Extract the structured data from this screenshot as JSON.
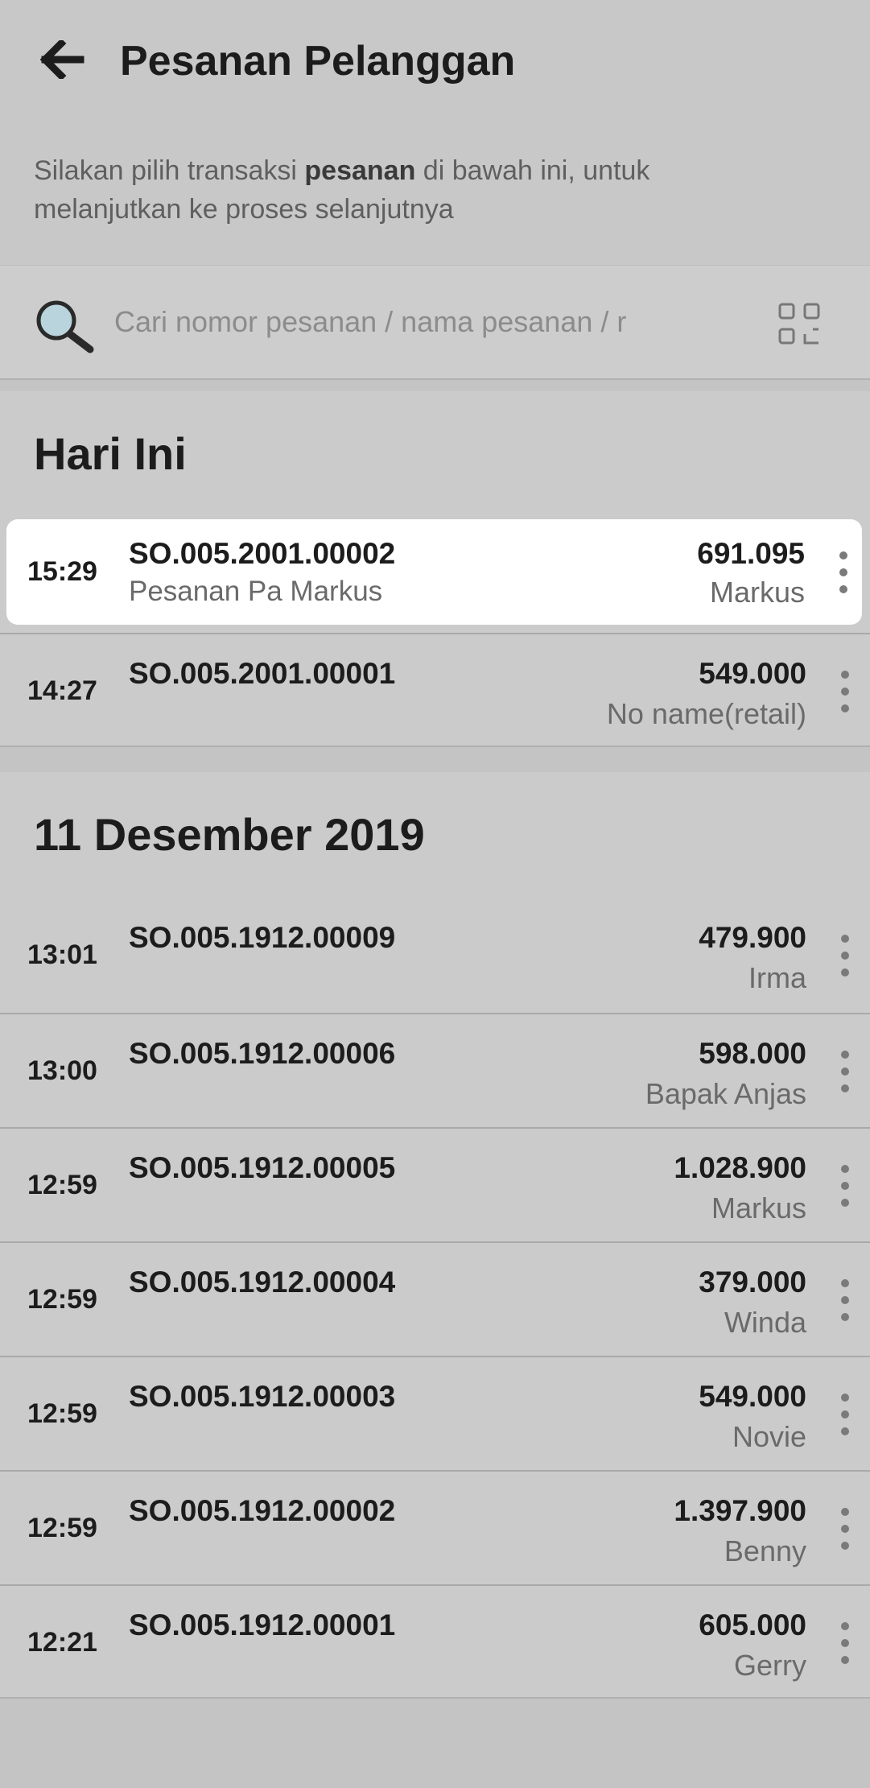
{
  "header": {
    "title": "Pesanan Pelanggan",
    "description": [
      "Silakan pilih transaksi ",
      "pesanan",
      " di bawah ini, untuk melanjutkan ke proses selanjutnya"
    ]
  },
  "search": {
    "placeholder": "Cari nomor pesanan / nama pesanan / r"
  },
  "sections": [
    {
      "title": "Hari Ini",
      "orders": [
        {
          "time": "15:29",
          "number": "SO.005.2001.00002",
          "note": "Pesanan Pa Markus",
          "amount": "691.095",
          "customer": "Markus"
        },
        {
          "time": "14:27",
          "number": "SO.005.2001.00001",
          "amount": "549.000",
          "customer": "No name(retail)"
        }
      ]
    },
    {
      "title": "11 Desember 2019",
      "orders": [
        {
          "time": "13:01",
          "number": "SO.005.1912.00009",
          "amount": "479.900",
          "customer": "Irma"
        },
        {
          "time": "13:00",
          "number": "SO.005.1912.00006",
          "amount": "598.000",
          "customer": "Bapak Anjas"
        },
        {
          "time": "12:59",
          "number": "SO.005.1912.00005",
          "amount": "1.028.900",
          "customer": "Markus"
        },
        {
          "time": "12:59",
          "number": "SO.005.1912.00004",
          "amount": "379.000",
          "customer": "Winda"
        },
        {
          "time": "12:59",
          "number": "SO.005.1912.00003",
          "amount": "549.000",
          "customer": "Novie"
        },
        {
          "time": "12:59",
          "number": "SO.005.1912.00002",
          "amount": "1.397.900",
          "customer": "Benny"
        },
        {
          "time": "12:21",
          "number": "SO.005.1912.00001",
          "amount": "605.000",
          "customer": "Gerry"
        }
      ]
    }
  ]
}
